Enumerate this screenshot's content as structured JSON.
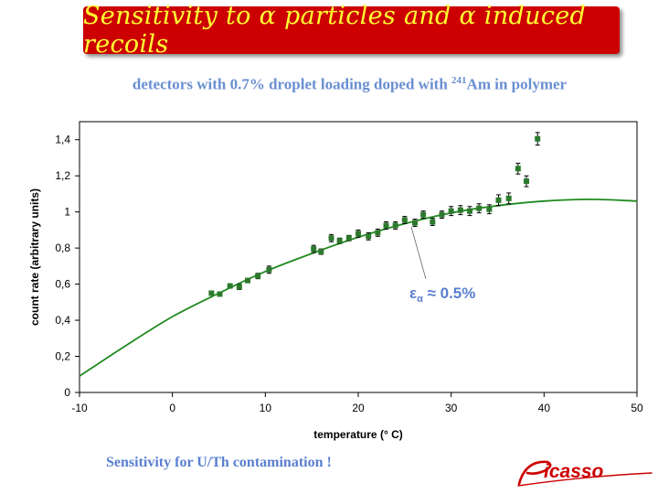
{
  "slide": {
    "title": "Sensitivity to α particles and α induced recoils",
    "subtitle_pre": "detectors with 0.7% droplet loading doped with ",
    "subtitle_sup": "241",
    "subtitle_post": "Am in polymer",
    "footer": "Sensitivity for U/Th contamination !",
    "logo_text": "Picasso",
    "annotation_symbol": "ε",
    "annotation_sub": "α",
    "annotation_rest": " ≈  0.5%",
    "colors": {
      "title_bg": "#cc0000",
      "title_text": "#ffff33",
      "accent_blue": "#5a7fd0",
      "data_green": "#2d7a2d",
      "fit_green": "#1f8a1f"
    }
  },
  "chart_data": {
    "type": "scatter",
    "xlabel": "temperature (° C)",
    "ylabel": "count rate (arbitrary units)",
    "xlim": [
      -10,
      50
    ],
    "ylim": [
      0,
      1.5
    ],
    "xticks": [
      -10,
      0,
      10,
      20,
      30,
      40,
      50
    ],
    "xtick_labels": [
      "-10",
      "0",
      "10",
      "20",
      "30",
      "40",
      "50"
    ],
    "yticks": [
      0,
      0.2,
      0.4,
      0.6,
      0.8,
      1,
      1.2,
      1.4
    ],
    "ytick_labels": [
      "0",
      "0,2",
      "0,4",
      "0,6",
      "0,8",
      "1",
      "1,2",
      "1,4"
    ],
    "grid": false,
    "series": [
      {
        "kind": "points",
        "x": [
          4.2,
          5.1,
          6.2,
          7.2,
          8.1,
          9.2,
          10.4,
          15.2,
          16.0,
          17.1,
          18.0,
          19.0,
          20.0,
          21.1,
          22.1,
          23.0,
          24.0,
          25.0,
          26.1,
          27.0,
          28.0,
          29.0,
          30.0,
          31.0,
          32.0,
          33.0,
          34.1,
          35.1,
          36.2,
          37.2,
          38.1,
          39.3
        ],
        "y": [
          0.55,
          0.545,
          0.59,
          0.585,
          0.62,
          0.645,
          0.68,
          0.795,
          0.78,
          0.855,
          0.84,
          0.855,
          0.88,
          0.865,
          0.885,
          0.925,
          0.925,
          0.955,
          0.94,
          0.985,
          0.945,
          0.985,
          1.005,
          1.01,
          1.005,
          1.02,
          1.015,
          1.065,
          1.075,
          1.24,
          1.17,
          1.405
        ],
        "yerr": [
          0.01,
          0.01,
          0.012,
          0.015,
          0.012,
          0.015,
          0.02,
          0.02,
          0.015,
          0.02,
          0.015,
          0.015,
          0.02,
          0.02,
          0.02,
          0.02,
          0.02,
          0.02,
          0.02,
          0.02,
          0.02,
          0.02,
          0.025,
          0.025,
          0.025,
          0.025,
          0.025,
          0.03,
          0.03,
          0.03,
          0.03,
          0.035
        ]
      },
      {
        "kind": "fit",
        "x": [
          -10,
          -5,
          0,
          5,
          10,
          15,
          20,
          25,
          30,
          35,
          40,
          45,
          50
        ],
        "y": [
          0.09,
          0.26,
          0.42,
          0.55,
          0.67,
          0.77,
          0.86,
          0.935,
          0.995,
          1.035,
          1.06,
          1.07,
          1.06
        ]
      }
    ]
  }
}
